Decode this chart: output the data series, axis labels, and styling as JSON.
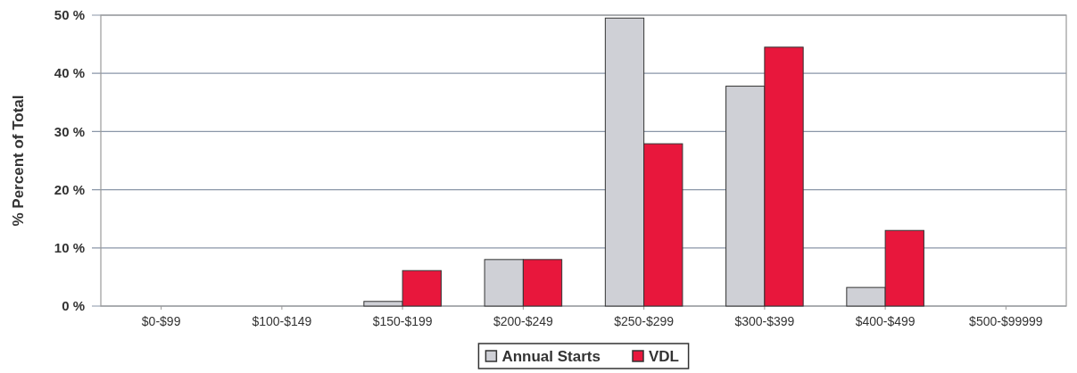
{
  "chart_data": {
    "type": "bar",
    "ylabel": "% Percent of Total",
    "categories": [
      "$0-$99",
      "$100-$149",
      "$150-$199",
      "$200-$249",
      "$250-$299",
      "$300-$399",
      "$400-$499",
      "$500-$99999"
    ],
    "series": [
      {
        "name": "Annual Starts",
        "color": "#cfd0d6",
        "values": [
          0,
          0,
          0.8,
          8.0,
          49.5,
          37.8,
          3.2,
          0
        ]
      },
      {
        "name": "VDL",
        "color": "#e8173c",
        "values": [
          0,
          0,
          6.1,
          8.0,
          27.9,
          44.5,
          13.0,
          0
        ]
      }
    ],
    "ylim": [
      0,
      50
    ],
    "yticks": [
      {
        "value": 0,
        "label": "0 %"
      },
      {
        "value": 10,
        "label": "10 %"
      },
      {
        "value": 20,
        "label": "20 %"
      },
      {
        "value": 30,
        "label": "30 %"
      },
      {
        "value": 40,
        "label": "40 %"
      },
      {
        "value": 50,
        "label": "50 %"
      }
    ],
    "grid": "y",
    "legend": "bottom"
  }
}
